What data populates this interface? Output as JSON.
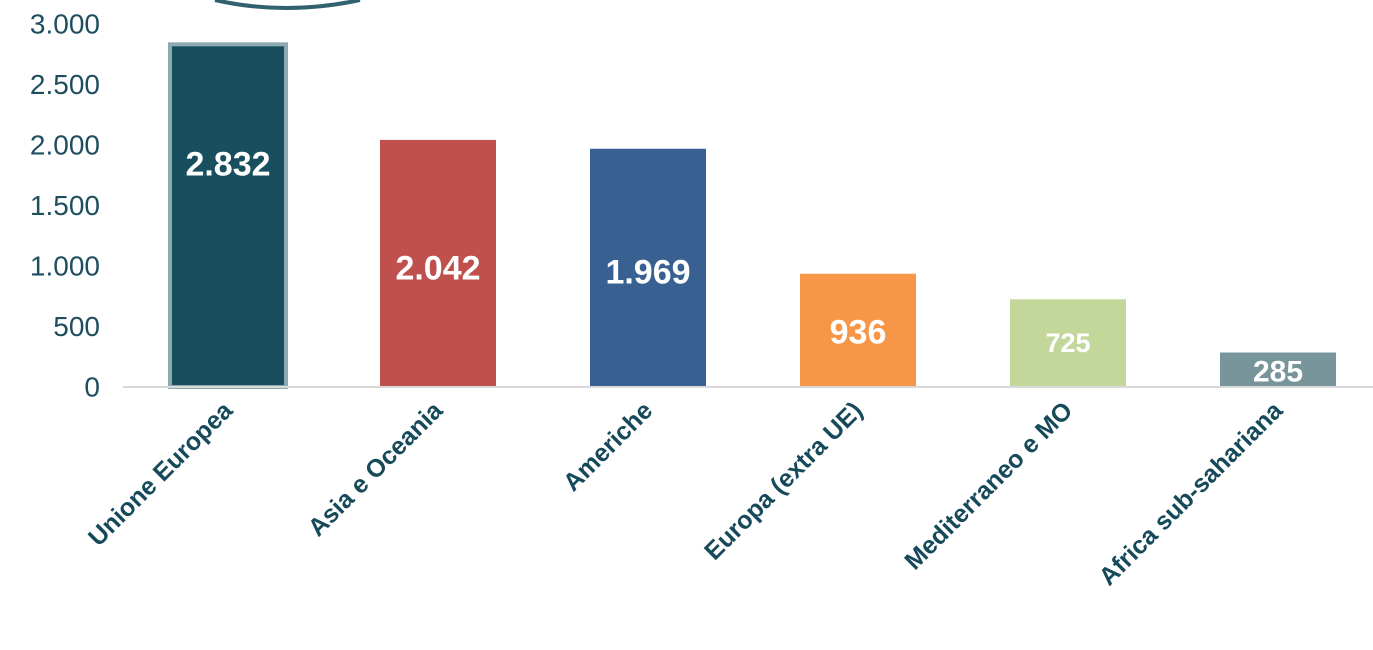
{
  "chart_data": {
    "type": "bar",
    "title": "",
    "xlabel": "",
    "ylabel": "",
    "categories": [
      "Unione Europea",
      "Asia e Oceania",
      "Americhe",
      "Europa (extra UE)",
      "Mediterraneo e MO",
      "Africa sub-sahariana"
    ],
    "values": [
      2832,
      2042,
      1969,
      936,
      725,
      285
    ],
    "data_labels": [
      "2.832",
      "2.042",
      "1.969",
      "936",
      "725",
      "285"
    ],
    "bar_colors": [
      "#174f5f",
      "#c0504d",
      "#386192",
      "#f79646",
      "#c4d79b",
      "#77959b"
    ],
    "label_colors": [
      "#ffffff",
      "#ffffff",
      "#ffffff",
      "#ffffff",
      "#ffffff",
      "#ffffff"
    ],
    "highlighted_bar_outline": "#8fa9b0",
    "ylim": [
      0,
      3000
    ],
    "yticks": [
      0,
      500,
      1000,
      1500,
      2000,
      2500,
      3000
    ],
    "ytick_labels": [
      "0",
      "500",
      "1.000",
      "1.500",
      "2.000",
      "2.500",
      "3.000"
    ],
    "grid": false,
    "legend": "none"
  },
  "colors": {
    "axis_text": "#1f4e5f",
    "category_text": "#164a5b",
    "axis_line": "#d9d9d9",
    "callout_ring": "#31606e"
  }
}
